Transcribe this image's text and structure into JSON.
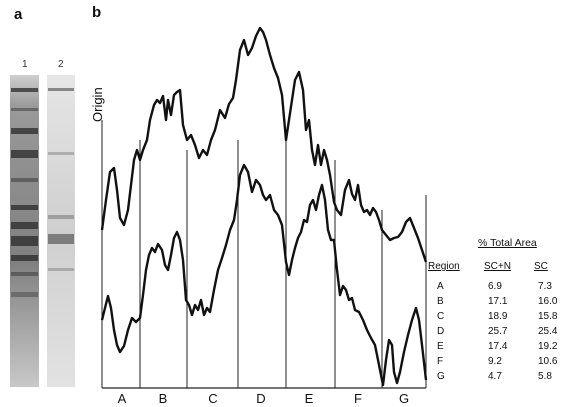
{
  "panel_a_label": "a",
  "panel_b_label": "b",
  "lanes": [
    "1",
    "2"
  ],
  "origin_label": "Origin",
  "regions": [
    "A",
    "B",
    "C",
    "D",
    "E",
    "F",
    "G"
  ],
  "table": {
    "title": "% Total Area",
    "headers": {
      "region": "Region",
      "scn": "SC+N",
      "sc": "SC"
    },
    "rows": [
      {
        "region": "A",
        "scn": "6.9",
        "sc": "7.3"
      },
      {
        "region": "B",
        "scn": "17.1",
        "sc": "16.0"
      },
      {
        "region": "C",
        "scn": "18.9",
        "sc": "15.8"
      },
      {
        "region": "D",
        "scn": "25.7",
        "sc": "25.4"
      },
      {
        "region": "E",
        "scn": "17.4",
        "sc": "19.2"
      },
      {
        "region": "F",
        "scn": "9.2",
        "sc": "10.6"
      },
      {
        "region": "G",
        "scn": "4.7",
        "sc": "5.8"
      }
    ]
  }
}
